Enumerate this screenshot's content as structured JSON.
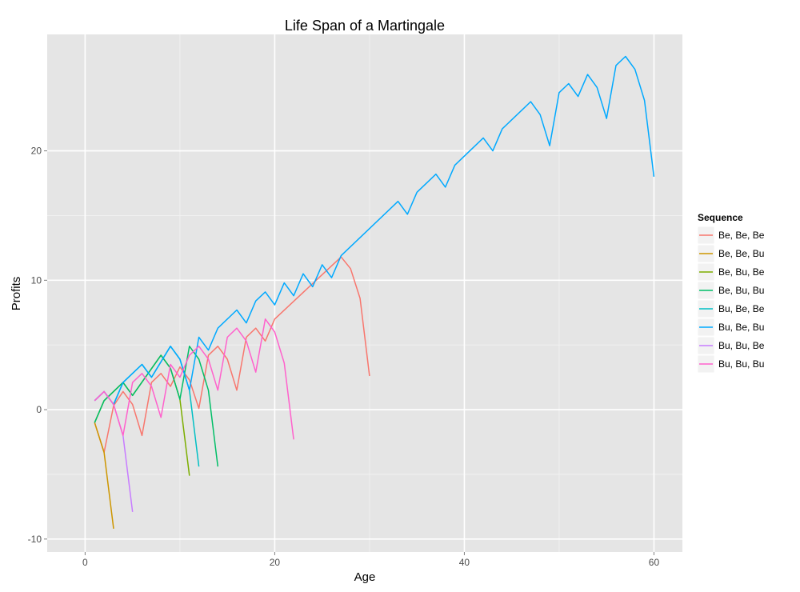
{
  "chart_data": {
    "type": "line",
    "title": "Life Span of a Martingale",
    "xlabel": "Age",
    "ylabel": "Profits",
    "xlim": [
      -4,
      63
    ],
    "ylim": [
      -11,
      29
    ],
    "xticks": [
      0,
      20,
      40,
      60
    ],
    "yticks": [
      -10,
      0,
      10,
      20
    ],
    "x_tick_labels": [
      "0",
      "20",
      "40",
      "60"
    ],
    "y_tick_labels": [
      "-10",
      "0",
      "10",
      "20"
    ],
    "grid": true,
    "legend": {
      "title": "Sequence",
      "position": "right"
    },
    "series": [
      {
        "name": "Be, Be, Be",
        "color": "#F8766D",
        "points": [
          [
            1,
            -1
          ],
          [
            2,
            -3.3
          ],
          [
            3,
            0.3
          ],
          [
            4,
            1.4
          ],
          [
            5,
            0.4
          ],
          [
            6,
            -2
          ],
          [
            7,
            2.1
          ],
          [
            8,
            2.8
          ],
          [
            9,
            1.8
          ],
          [
            10,
            3.3
          ],
          [
            11,
            2.3
          ],
          [
            12,
            0.1
          ],
          [
            13,
            4.2
          ],
          [
            14,
            4.9
          ],
          [
            15,
            3.9
          ],
          [
            16,
            1.5
          ],
          [
            17,
            5.6
          ],
          [
            18,
            6.3
          ],
          [
            19,
            5.3
          ],
          [
            20,
            7
          ],
          [
            27,
            11.8
          ],
          [
            28,
            10.9
          ],
          [
            29,
            8.6
          ],
          [
            30,
            2.6
          ]
        ]
      },
      {
        "name": "Be, Be, Bu",
        "color": "#CD9600",
        "points": [
          [
            1,
            -1
          ],
          [
            2,
            -3.3
          ],
          [
            3,
            -9.2
          ]
        ]
      },
      {
        "name": "Be, Bu, Be",
        "color": "#7CAE00",
        "points": [
          [
            1,
            -1
          ],
          [
            2,
            0.7
          ],
          [
            4,
            2.1
          ],
          [
            5,
            1.1
          ],
          [
            8,
            4.2
          ],
          [
            9,
            3.2
          ],
          [
            10,
            0.8
          ],
          [
            11,
            -5.1
          ]
        ]
      },
      {
        "name": "Be, Bu, Bu",
        "color": "#00BE67",
        "points": [
          [
            1,
            -1
          ],
          [
            2,
            0.7
          ],
          [
            4,
            2.1
          ],
          [
            5,
            1.1
          ],
          [
            8,
            4.2
          ],
          [
            9,
            3.2
          ],
          [
            10,
            0.8
          ],
          [
            11,
            4.9
          ],
          [
            12,
            3.9
          ],
          [
            13,
            1.5
          ],
          [
            14,
            -4.4
          ]
        ]
      },
      {
        "name": "Bu, Be, Be",
        "color": "#00BFC4",
        "points": [
          [
            1,
            0.7
          ],
          [
            2,
            1.4
          ],
          [
            3,
            0.4
          ],
          [
            4,
            2.1
          ],
          [
            6,
            3.5
          ],
          [
            7,
            2.5
          ],
          [
            9,
            4.9
          ],
          [
            10,
            3.9
          ],
          [
            11,
            1.5
          ],
          [
            12,
            -4.4
          ]
        ]
      },
      {
        "name": "Bu, Be, Bu",
        "color": "#00A9FF",
        "points": [
          [
            1,
            0.7
          ],
          [
            2,
            1.4
          ],
          [
            3,
            0.4
          ],
          [
            4,
            2.1
          ],
          [
            6,
            3.5
          ],
          [
            7,
            2.5
          ],
          [
            9,
            4.9
          ],
          [
            10,
            3.9
          ],
          [
            11,
            1.5
          ],
          [
            12,
            5.6
          ],
          [
            13,
            4.6
          ],
          [
            14,
            6.3
          ],
          [
            16,
            7.7
          ],
          [
            17,
            6.7
          ],
          [
            18,
            8.4
          ],
          [
            19,
            9.1
          ],
          [
            20,
            8.1
          ],
          [
            21,
            9.8
          ],
          [
            22,
            8.8
          ],
          [
            23,
            10.5
          ],
          [
            24,
            9.5
          ],
          [
            25,
            11.2
          ],
          [
            26,
            10.2
          ],
          [
            27,
            11.9
          ],
          [
            33,
            16.1
          ],
          [
            34,
            15.1
          ],
          [
            35,
            16.8
          ],
          [
            37,
            18.2
          ],
          [
            38,
            17.2
          ],
          [
            39,
            18.9
          ],
          [
            42,
            21
          ],
          [
            43,
            20
          ],
          [
            44,
            21.7
          ],
          [
            47,
            23.8
          ],
          [
            48,
            22.8
          ],
          [
            49,
            20.4
          ],
          [
            50,
            24.5
          ],
          [
            51,
            25.2
          ],
          [
            52,
            24.2
          ],
          [
            53,
            25.9
          ],
          [
            54,
            24.9
          ],
          [
            55,
            22.5
          ],
          [
            56,
            26.6
          ],
          [
            57,
            27.3
          ],
          [
            58,
            26.3
          ],
          [
            59,
            23.9
          ],
          [
            60,
            18
          ]
        ]
      },
      {
        "name": "Bu, Bu, Be",
        "color": "#C77CFF",
        "points": [
          [
            1,
            0.7
          ],
          [
            2,
            1.4
          ],
          [
            3,
            0.4
          ],
          [
            4,
            -2
          ],
          [
            5,
            -7.9
          ]
        ]
      },
      {
        "name": "Bu, Bu, Bu",
        "color": "#FF61CC",
        "points": [
          [
            1,
            0.7
          ],
          [
            2,
            1.4
          ],
          [
            3,
            0.4
          ],
          [
            4,
            -2
          ],
          [
            5,
            2.1
          ],
          [
            6,
            2.8
          ],
          [
            7,
            1.8
          ],
          [
            8,
            -0.6
          ],
          [
            9,
            3.5
          ],
          [
            10,
            2.5
          ],
          [
            11,
            4.2
          ],
          [
            12,
            4.9
          ],
          [
            13,
            3.9
          ],
          [
            14,
            1.5
          ],
          [
            15,
            5.6
          ],
          [
            16,
            6.3
          ],
          [
            17,
            5.3
          ],
          [
            18,
            2.9
          ],
          [
            19,
            7
          ],
          [
            20,
            6
          ],
          [
            21,
            3.6
          ],
          [
            22,
            -2.3
          ]
        ]
      }
    ]
  }
}
